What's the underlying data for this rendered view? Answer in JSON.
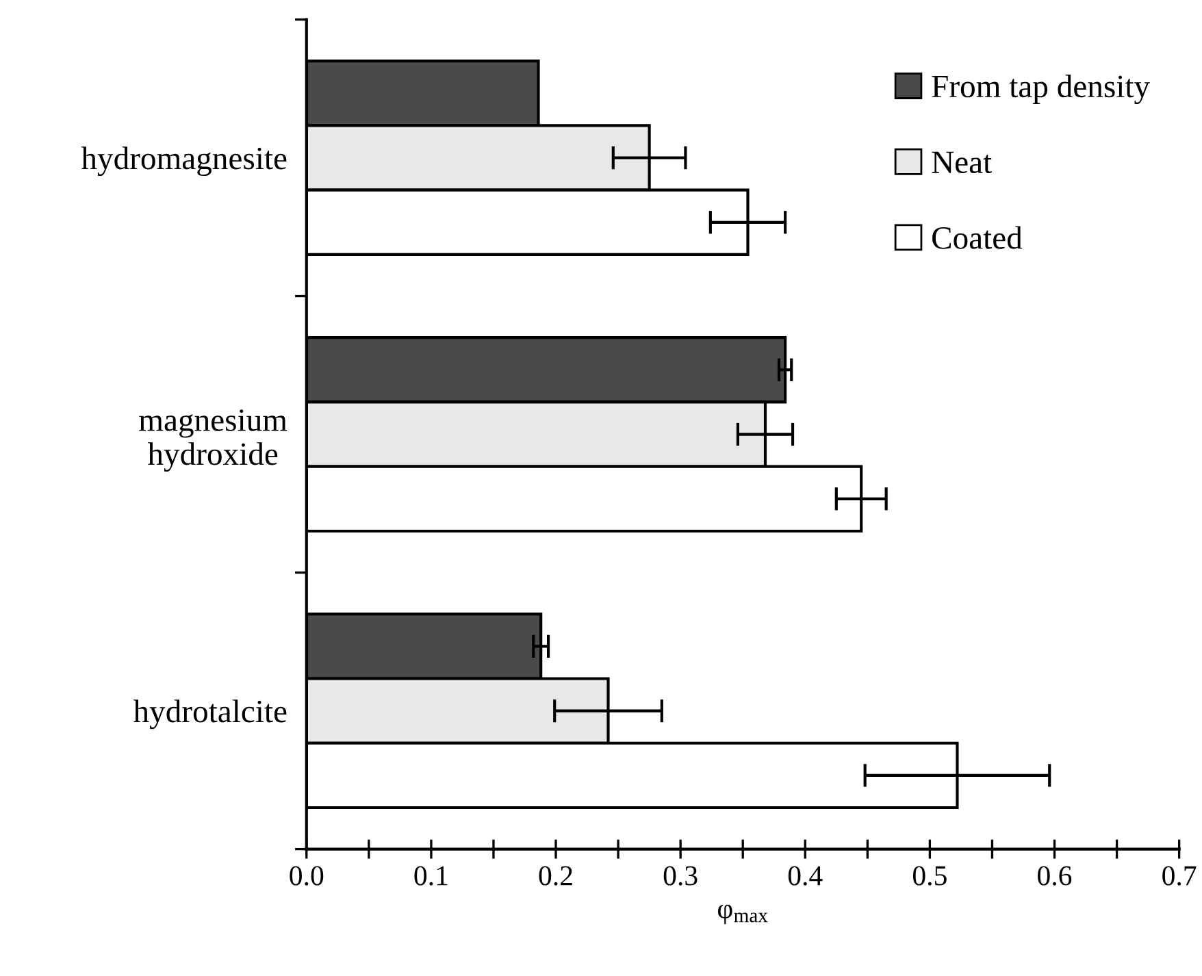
{
  "chart_data": {
    "type": "bar",
    "orientation": "horizontal",
    "xlabel": "φ$_{max}$",
    "categories": [
      "hydromagnesite",
      "magnesium\nhydroxide",
      "hydrotalcite"
    ],
    "series": [
      {
        "name": "From tap density",
        "color": "#4a4a4a",
        "values": [
          0.186,
          0.384,
          0.188
        ],
        "errors": [
          null,
          0.005,
          0.006
        ]
      },
      {
        "name": "Neat",
        "color": "#e8e8e8",
        "values": [
          0.275,
          0.368,
          0.242
        ],
        "errors": [
          0.029,
          0.022,
          0.043
        ]
      },
      {
        "name": "Coated",
        "color": "#ffffff",
        "values": [
          0.354,
          0.445,
          0.522
        ],
        "errors": [
          0.03,
          0.02,
          0.074
        ]
      }
    ],
    "xlim": [
      0,
      0.7
    ],
    "xticks": [
      {
        "value": 0,
        "label": "0.0"
      },
      {
        "value": 0.05,
        "label": null
      },
      {
        "value": 0.1,
        "label": "0.1"
      },
      {
        "value": 0.15,
        "label": null
      },
      {
        "value": 0.2,
        "label": "0.2"
      },
      {
        "value": 0.25,
        "label": null
      },
      {
        "value": 0.3,
        "label": "0.3"
      },
      {
        "value": 0.35,
        "label": null
      },
      {
        "value": 0.4,
        "label": "0.4"
      },
      {
        "value": 0.45,
        "label": null
      },
      {
        "value": 0.5,
        "label": "0.5"
      },
      {
        "value": 0.55,
        "label": null
      },
      {
        "value": 0.6,
        "label": "0.6"
      },
      {
        "value": 0.65,
        "label": null
      },
      {
        "value": 0.7,
        "label": "0.7"
      }
    ],
    "grid": false,
    "legend": "top right"
  }
}
